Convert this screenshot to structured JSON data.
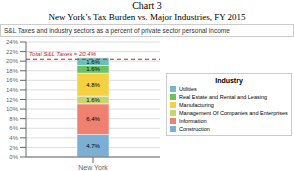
{
  "chart_data": {
    "type": "bar",
    "stacked": true,
    "title": "Chart 3",
    "subtitle": "New York’s Tax Burden vs. Major Industries, FY 2015",
    "categories": [
      "New York"
    ],
    "series": [
      {
        "name": "Construction",
        "color": "#7bafd4",
        "values": [
          4.7
        ],
        "value_labels": [
          "4.7%"
        ]
      },
      {
        "name": "Information",
        "color": "#f08070",
        "values": [
          6.4
        ],
        "value_labels": [
          "6.4%"
        ]
      },
      {
        "name": "Management Of Companies and Enterprises",
        "color": "#c8d46e",
        "values": [
          1.6
        ],
        "value_labels": [
          "1.6%"
        ]
      },
      {
        "name": "Manufacturing",
        "color": "#f5d040",
        "values": [
          4.8
        ],
        "value_labels": [
          "4.8%"
        ]
      },
      {
        "name": "Real Estate and Rental and Leasing",
        "color": "#6fc060",
        "values": [
          1.6
        ],
        "value_labels": [
          "1.6%"
        ]
      },
      {
        "name": "Utilities",
        "color": "#6fbfb8",
        "values": [
          1.6
        ],
        "value_labels": [
          "1.6%"
        ]
      }
    ],
    "data_labels": true,
    "ylim": [
      0,
      24
    ],
    "yticks": [
      {
        "value": 0,
        "label": "0%"
      },
      {
        "value": 2,
        "label": "2%"
      },
      {
        "value": 4,
        "label": "4%"
      },
      {
        "value": 6,
        "label": "6%"
      },
      {
        "value": 8,
        "label": "8%"
      },
      {
        "value": 10,
        "label": "10%"
      },
      {
        "value": 12,
        "label": "12%"
      },
      {
        "value": 14,
        "label": "14%"
      },
      {
        "value": 16,
        "label": "16%"
      },
      {
        "value": 18,
        "label": "18%"
      },
      {
        "value": 20,
        "label": "20%"
      },
      {
        "value": 22,
        "label": "22%"
      },
      {
        "value": 24,
        "label": "24%"
      }
    ],
    "grid": true,
    "legend": "right",
    "legend_title": "Industry",
    "annotations": [
      {
        "text": "S&L Taxes and industry sectors as a percent of private sector personal income"
      },
      {
        "text": "Total S&L Taxes = 20.4%",
        "y": 20.4,
        "color": "#cc2222",
        "line_style": "dashed"
      }
    ]
  }
}
